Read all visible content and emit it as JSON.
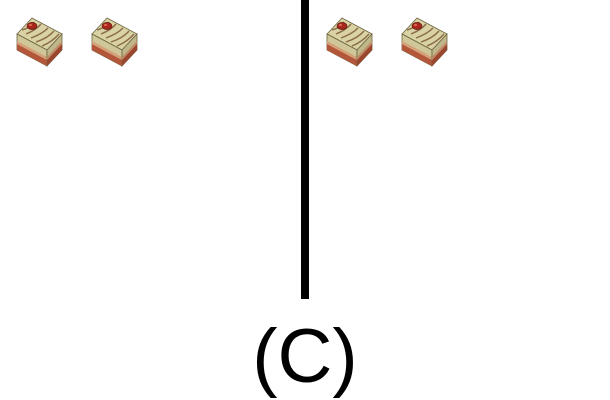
{
  "label": "(C)",
  "divider_color": "#000000",
  "panels": [
    {
      "name": "left",
      "items": [
        {
          "icon": "cake-slice-icon"
        },
        {
          "icon": "cake-slice-icon"
        }
      ]
    },
    {
      "name": "right",
      "items": [
        {
          "icon": "cake-slice-icon"
        },
        {
          "icon": "cake-slice-icon"
        }
      ]
    }
  ]
}
